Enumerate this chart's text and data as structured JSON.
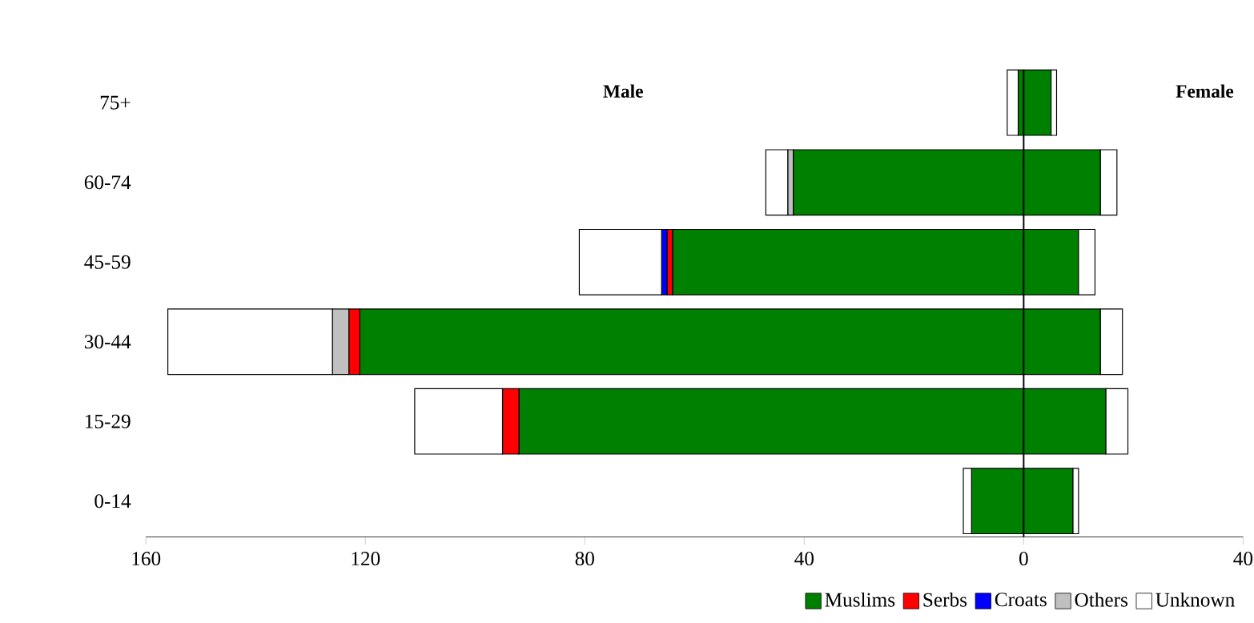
{
  "chart_data": {
    "type": "bar",
    "orientation": "horizontal",
    "stacked": true,
    "categories": [
      "75+",
      "60-74",
      "45-59",
      "30-44",
      "15-29",
      "0-14"
    ],
    "series": [
      {
        "name": "Muslims",
        "color": "#008000",
        "values": [
          -1,
          -42,
          -64,
          -121,
          -92,
          -9.5
        ]
      },
      {
        "name": "Serbs",
        "color": "#ff0000",
        "values": [
          null,
          null,
          -1,
          -2,
          -3,
          null
        ]
      },
      {
        "name": "Croats",
        "color": "#0000ff",
        "values": [
          null,
          null,
          -1,
          null,
          null,
          null
        ]
      },
      {
        "name": "Others",
        "color": "#c0c0c0",
        "values": [
          null,
          -1,
          null,
          -3,
          null,
          null
        ]
      },
      {
        "name": "Unknown",
        "color": "#ffffff",
        "values": [
          -2,
          -4,
          -15,
          -30,
          -16,
          -1.5
        ]
      },
      {
        "color": "#008000",
        "values": [
          5,
          14,
          10,
          14,
          15,
          9
        ]
      },
      {
        "color": "#ffffff",
        "values": [
          1,
          3,
          3,
          4,
          4,
          1
        ]
      }
    ],
    "xlim": [
      -160,
      40
    ],
    "xticks": [
      {
        "value": -160,
        "label": "160"
      },
      {
        "value": -120,
        "label": "120"
      },
      {
        "value": -80,
        "label": "80"
      },
      {
        "value": -40,
        "label": "40"
      },
      0,
      40
    ],
    "annotations": [
      "Male",
      "Female"
    ],
    "legend": "bottom"
  }
}
